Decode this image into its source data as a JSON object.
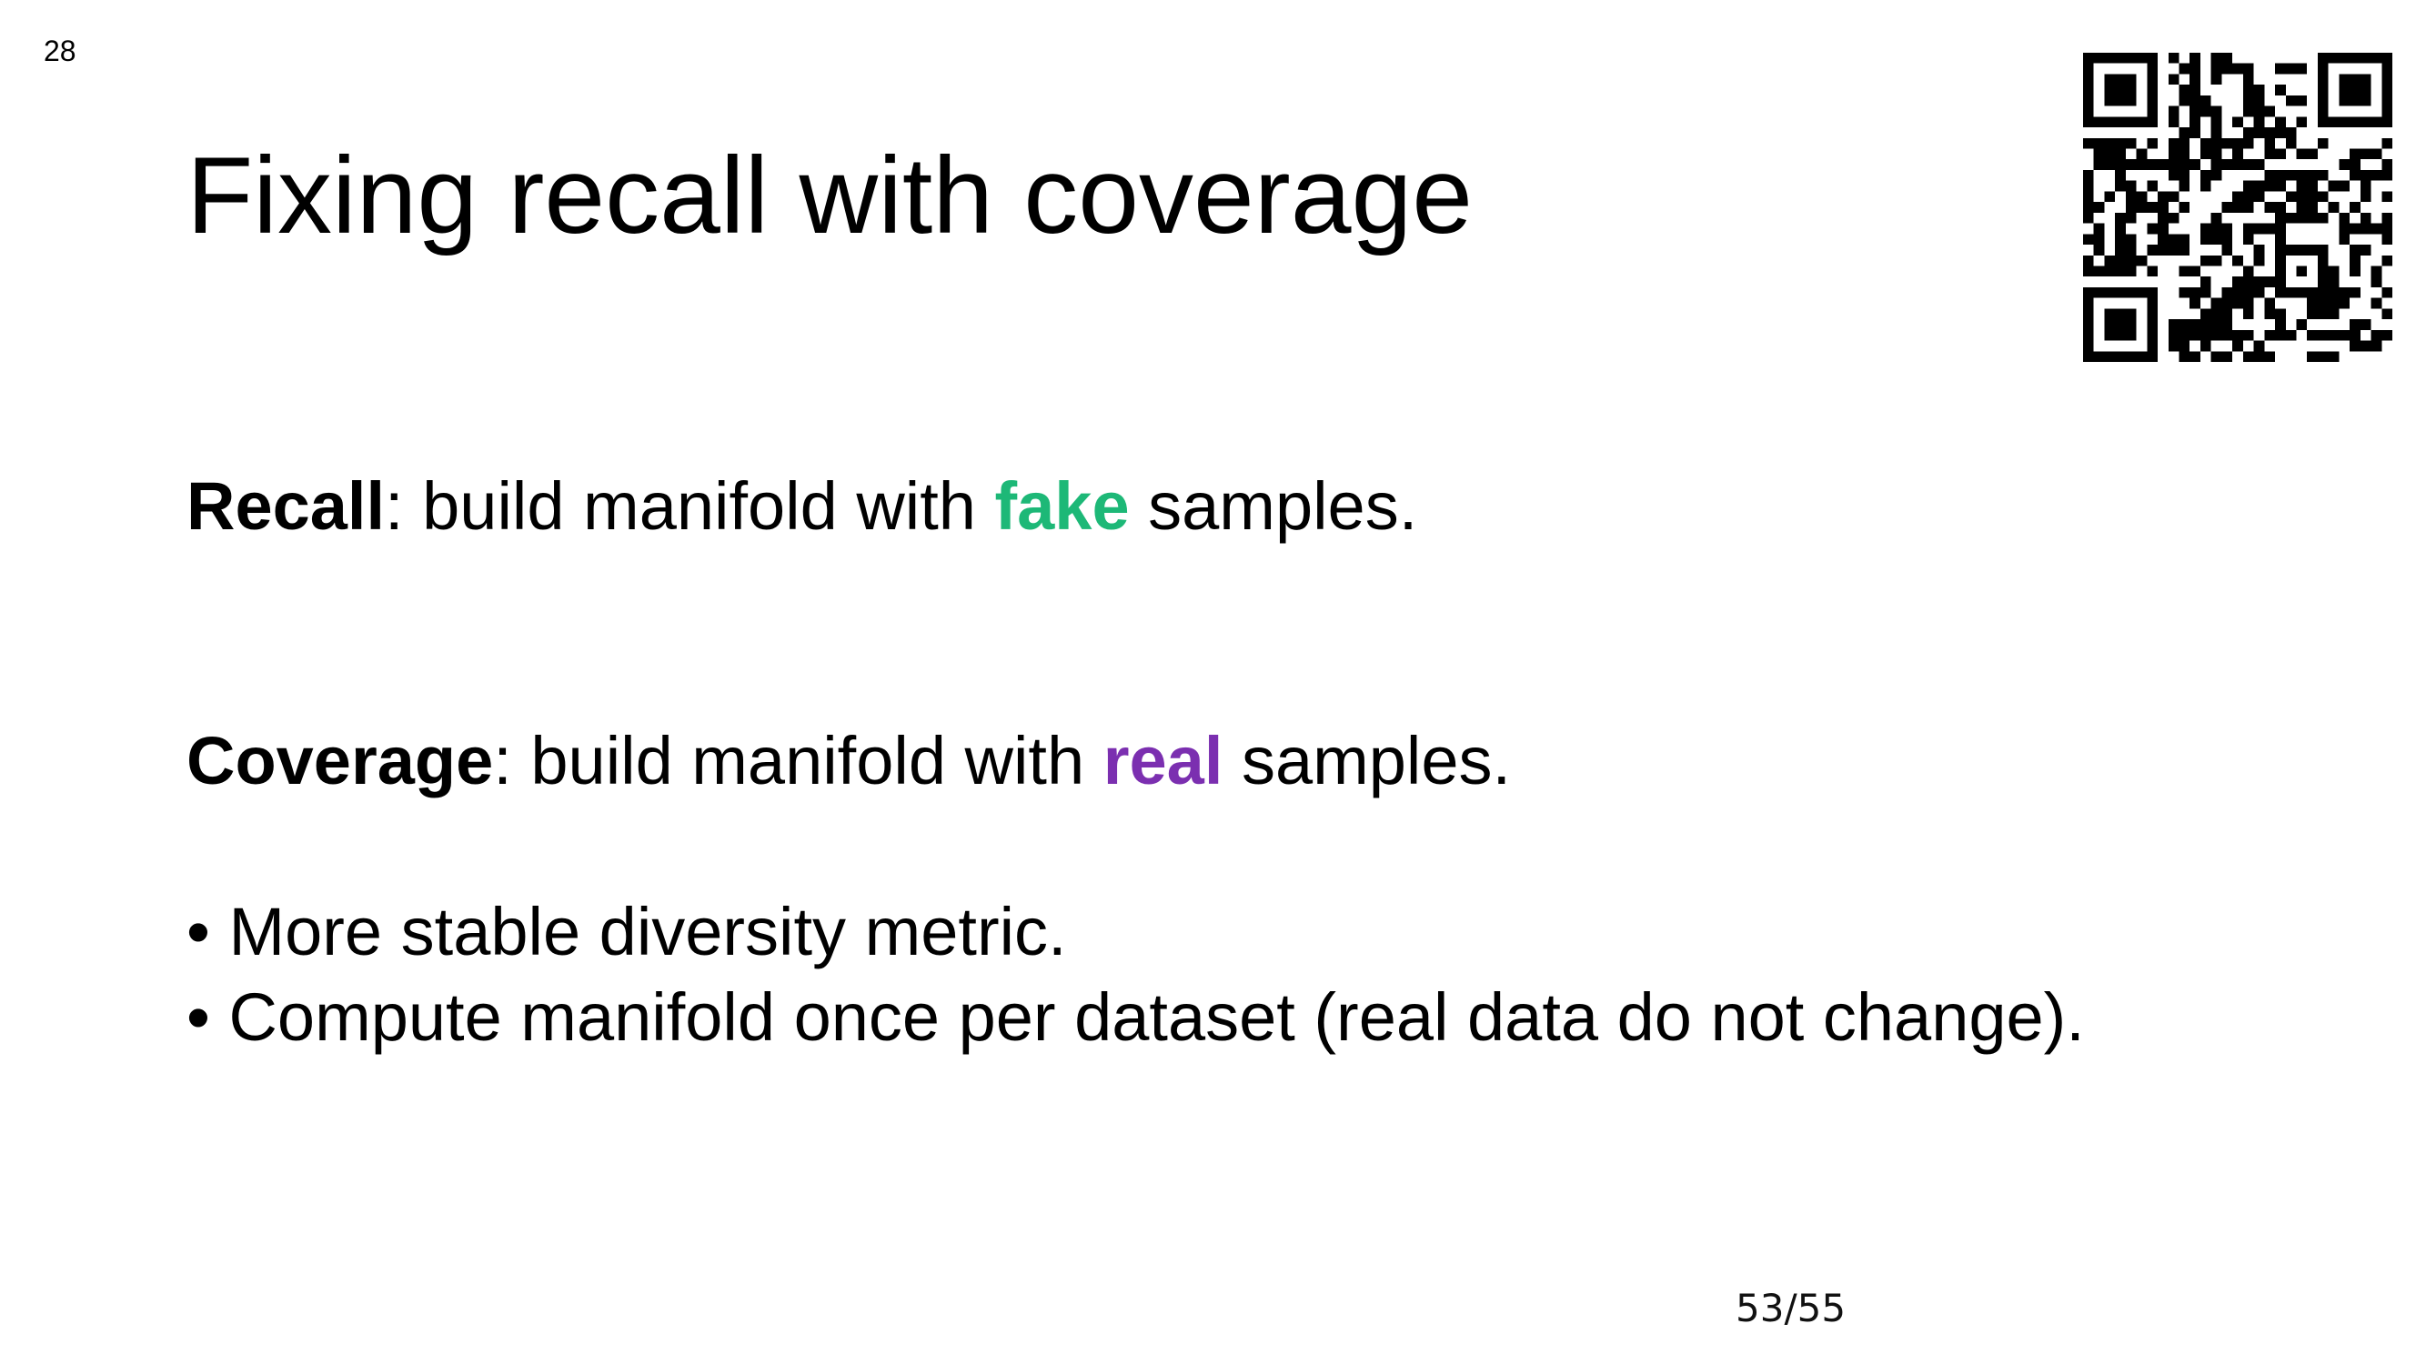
{
  "slide": {
    "number": "28",
    "title": "Fixing recall with coverage",
    "page_counter": "53/55"
  },
  "recall_line": {
    "term": "Recall",
    "before": ": build manifold with ",
    "highlight": "fake",
    "after": " samples."
  },
  "coverage_line": {
    "term": "Coverage",
    "before": ": build manifold with ",
    "highlight": "real",
    "after": " samples."
  },
  "bullets": [
    {
      "marker": "•",
      "text": "More stable diversity metric."
    },
    {
      "marker": "•",
      "text": "Compute manifold once per dataset (real data do not change)."
    }
  ],
  "colors": {
    "fake": "#1db877",
    "real": "#7b2fb0",
    "text": "#000000"
  },
  "qr_code": {
    "icon": "qr-code-icon"
  }
}
